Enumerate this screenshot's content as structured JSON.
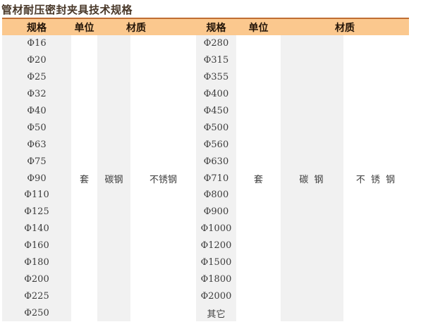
{
  "page": {
    "title": "管材耐压密封夹具技术规格"
  },
  "table": {
    "headers": {
      "spec": "规格",
      "unit": "单位",
      "material": "材质"
    },
    "groups": [
      {
        "name": "small-diameters",
        "specs": [
          "Φ16",
          "Φ20",
          "Φ25",
          "Φ32",
          "Φ40",
          "Φ50",
          "Φ63",
          "Φ75",
          "Φ90",
          "Φ110",
          "Φ125",
          "Φ140",
          "Φ160",
          "Φ180",
          "Φ200",
          "Φ225",
          "Φ250"
        ],
        "unit": "套",
        "materials": [
          "碳钢",
          "不锈钢"
        ]
      },
      {
        "name": "large-diameters",
        "specs": [
          "Φ280",
          "Φ315",
          "Φ355",
          "Φ400",
          "Φ450",
          "Φ500",
          "Φ560",
          "Φ630",
          "Φ710",
          "Φ800",
          "Φ900",
          "Φ1000",
          "Φ1200",
          "Φ1500",
          "Φ1800",
          "Φ2000",
          "其它"
        ],
        "unit": "套",
        "materials": [
          "碳 钢",
          "不 锈 钢"
        ]
      }
    ]
  },
  "colors": {
    "header_bg": "#fbc88e",
    "header_top_border": "#c06e33",
    "column_stripe": "#f1f1f1",
    "title_text": "#483728",
    "body_text": "#3c3c3c"
  }
}
